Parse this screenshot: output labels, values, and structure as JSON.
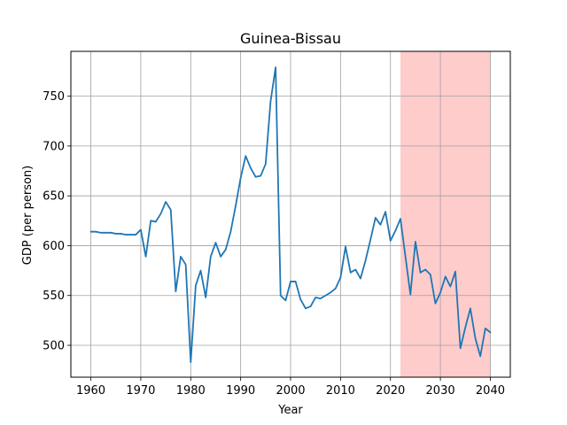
{
  "chart_data": {
    "type": "line",
    "title": "Guinea-Bissau",
    "xlabel": "Year",
    "ylabel": "GDP (per person)",
    "xlim": [
      1956,
      2044
    ],
    "ylim": [
      468,
      795
    ],
    "xticks": [
      1960,
      1970,
      1980,
      1990,
      2000,
      2010,
      2020,
      2030,
      2040
    ],
    "yticks": [
      500,
      550,
      600,
      650,
      700,
      750
    ],
    "grid": true,
    "line_color": "#1f77b4",
    "highlight": {
      "x_start": 2022,
      "x_end": 2040,
      "color": "#ffcccc"
    },
    "series": [
      {
        "x": [
          1960,
          1961,
          1962,
          1963,
          1964,
          1965,
          1966,
          1967,
          1968,
          1969,
          1970,
          1971,
          1972,
          1973,
          1974,
          1975,
          1976,
          1977,
          1978,
          1979,
          1980,
          1981,
          1982,
          1983,
          1984,
          1985,
          1986,
          1987,
          1988,
          1989,
          1990,
          1991,
          1992,
          1993,
          1994,
          1995,
          1996,
          1997,
          1998,
          1999,
          2000,
          2001,
          2002,
          2003,
          2004,
          2005,
          2006,
          2007,
          2008,
          2009,
          2010,
          2011,
          2012,
          2013,
          2014,
          2015,
          2016,
          2017,
          2018,
          2019,
          2020,
          2021,
          2022,
          2023,
          2024,
          2025,
          2026,
          2027,
          2028,
          2029,
          2030,
          2031,
          2032,
          2033,
          2034,
          2035,
          2036,
          2037,
          2038,
          2039,
          2040
        ],
        "y": [
          614,
          614,
          613,
          613,
          613,
          612,
          612,
          611,
          611,
          611,
          616,
          589,
          625,
          624,
          632,
          644,
          636,
          554,
          589,
          581,
          483,
          560,
          575,
          548,
          589,
          603,
          589,
          596,
          614,
          640,
          668,
          690,
          678,
          669,
          670,
          682,
          745,
          779,
          550,
          545,
          564,
          564,
          546,
          537,
          539,
          548,
          547,
          550,
          553,
          557,
          568,
          599,
          573,
          576,
          567,
          585,
          606,
          628,
          621,
          634,
          605,
          615,
          627,
          589,
          551,
          604,
          573,
          576,
          571,
          542,
          553,
          569,
          559,
          574,
          497,
          518,
          537,
          507,
          489,
          517,
          513
        ]
      }
    ]
  }
}
